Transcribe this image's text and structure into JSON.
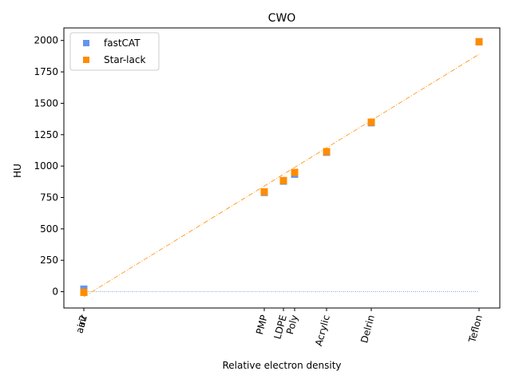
{
  "chart_data": {
    "type": "scatter",
    "title": "CWO",
    "xlabel": "Relative electron density",
    "ylabel": "HU",
    "ylim": [
      -130,
      2100
    ],
    "yticks": [
      0,
      250,
      500,
      750,
      1000,
      1250,
      1500,
      1750,
      2000
    ],
    "grid": false,
    "legend_position": "top-left",
    "categories": [
      "air",
      "air2",
      "PMP",
      "LDPE",
      "Poly",
      "Acrylic",
      "Delrin",
      "Teflon"
    ],
    "series": [
      {
        "name": "fastCAT",
        "color": "#6495ED",
        "marker": "square",
        "values": [
          20,
          20,
          790,
          880,
          935,
          1110,
          1345,
          1990
        ],
        "fit_line": {
          "y_start": 0,
          "y_end": 0,
          "style": "dotted"
        }
      },
      {
        "name": "Star-lack",
        "color": "#FF8C00",
        "marker": "square",
        "values": [
          -5,
          -5,
          795,
          885,
          950,
          1115,
          1350,
          1990
        ],
        "fit_line": {
          "y_start": -40,
          "y_end": 1890,
          "style": "dashdot"
        }
      }
    ]
  }
}
